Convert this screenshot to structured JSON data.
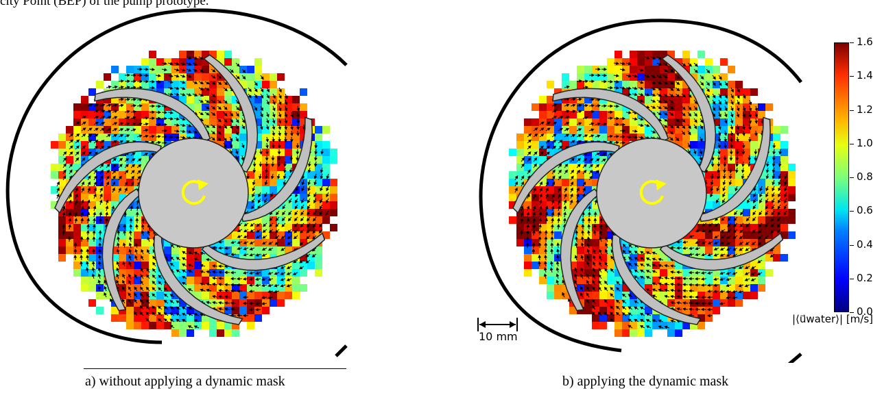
{
  "header": {
    "text": "city Point (BEP) of the pump prototype."
  },
  "panels": [
    {
      "id": "a",
      "caption": "a) without applying a dynamic mask"
    },
    {
      "id": "b",
      "caption": "b) applying the dynamic mask"
    }
  ],
  "scale_bar": {
    "label": "10 mm"
  },
  "colorbar": {
    "label": "|⟨u⃗water⟩| [m/s]",
    "ticks": [
      "0.0",
      "0.2",
      "0.4",
      "0.6",
      "0.8",
      "1.0",
      "1.2",
      "1.4",
      "1.6"
    ],
    "min": 0.0,
    "max": 1.6,
    "colormap": "jet"
  },
  "colors": {
    "hub": "#c8c8c8",
    "blade": "#c0c0c0",
    "rotation_arrow": "#ffff00",
    "casing": "#000000"
  }
}
